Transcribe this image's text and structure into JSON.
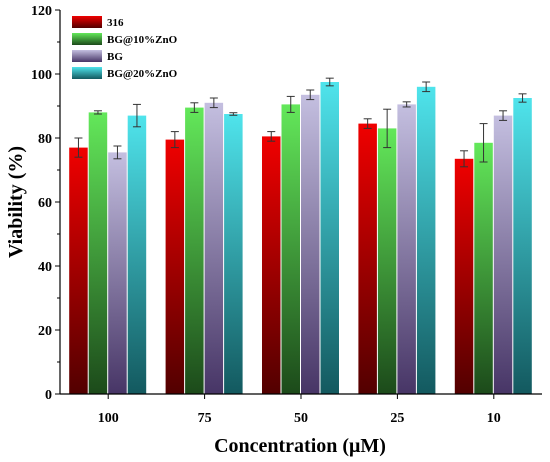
{
  "chart_data": {
    "type": "bar",
    "title": "",
    "xlabel": "Concentration (μM)",
    "ylabel": "Viability (%)",
    "ylim": [
      0,
      120
    ],
    "yticks": [
      0,
      20,
      40,
      60,
      80,
      100,
      120
    ],
    "categories": [
      "100",
      "75",
      "50",
      "25",
      "10"
    ],
    "legend_position": "top-left",
    "grid": false,
    "series": [
      {
        "name": "316",
        "color_top": "#f00000",
        "color_bottom": "#520000",
        "values": [
          77,
          79.5,
          80.5,
          84.5,
          73.5
        ],
        "errors": [
          3,
          2.5,
          1.5,
          1.5,
          2.5
        ]
      },
      {
        "name": "BG@10%ZnO",
        "color_top": "#63e85a",
        "color_bottom": "#1c4a1a",
        "values": [
          88,
          89.5,
          90.5,
          83,
          78.5
        ],
        "errors": [
          0.5,
          1.5,
          2.5,
          6,
          6
        ]
      },
      {
        "name": "BG",
        "color_top": "#c4bfe0",
        "color_bottom": "#473566",
        "values": [
          75.5,
          91,
          93.5,
          90.5,
          87
        ],
        "errors": [
          2,
          1.5,
          1.5,
          0.8,
          1.5
        ]
      },
      {
        "name": "BG@20%ZnO",
        "color_top": "#4fe4ec",
        "color_bottom": "#13595f",
        "values": [
          87,
          87.5,
          97.5,
          96,
          92.5
        ],
        "errors": [
          3.5,
          0.4,
          1.2,
          1.5,
          1.3
        ]
      }
    ]
  }
}
